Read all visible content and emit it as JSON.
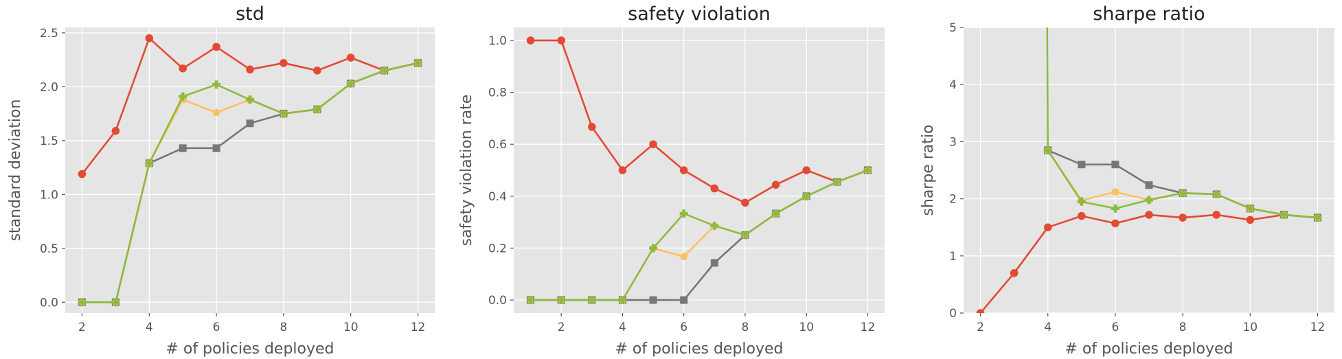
{
  "chart_data": [
    {
      "type": "line",
      "title": "std",
      "xlabel": "# of policies deployed",
      "ylabel": "standard deviation",
      "xlim": [
        1.5,
        12.5
      ],
      "ylim": [
        -0.1,
        2.55
      ],
      "xticks": [
        2,
        4,
        6,
        8,
        10,
        12
      ],
      "yticks": [
        0.0,
        0.5,
        1.0,
        1.5,
        2.0,
        2.5
      ],
      "ytick_labels": [
        "0.0",
        "0.5",
        "1.0",
        "1.5",
        "2.0",
        "2.5"
      ],
      "grid": true,
      "series": [
        {
          "color": "#e24a33",
          "marker": "circle",
          "x": [
            2,
            3,
            4,
            5,
            6,
            7,
            8,
            9,
            10,
            11,
            12
          ],
          "y": [
            1.19,
            1.59,
            2.45,
            2.17,
            2.37,
            2.16,
            2.22,
            2.15,
            2.27,
            2.15,
            2.22
          ]
        },
        {
          "color": "#777777",
          "marker": "square",
          "x": [
            2,
            3,
            4,
            5,
            6,
            7,
            8,
            9,
            10,
            11,
            12
          ],
          "y": [
            0.0,
            0.0,
            1.29,
            1.43,
            1.43,
            1.66,
            1.75,
            1.79,
            2.03,
            2.15,
            2.22
          ]
        },
        {
          "color": "#fbc15e",
          "marker": "pentagon",
          "x": [
            2,
            3,
            4,
            5,
            6,
            7,
            8,
            9,
            10,
            11,
            12
          ],
          "y": [
            0.0,
            0.0,
            1.29,
            1.88,
            1.76,
            1.88,
            1.75,
            1.79,
            2.03,
            2.15,
            2.22
          ]
        },
        {
          "color": "#8eba42",
          "marker": "plus",
          "x": [
            2,
            3,
            4,
            5,
            6,
            7,
            8,
            9,
            10,
            11,
            12
          ],
          "y": [
            0.0,
            0.0,
            1.29,
            1.91,
            2.02,
            1.88,
            1.75,
            1.79,
            2.03,
            2.15,
            2.22
          ]
        }
      ]
    },
    {
      "type": "line",
      "title": "safety violation",
      "xlabel": "# of policies deployed",
      "ylabel": "safety violation rate",
      "xlim": [
        0.45,
        12.55
      ],
      "ylim": [
        -0.05,
        1.05
      ],
      "xticks": [
        2,
        4,
        6,
        8,
        10,
        12
      ],
      "yticks": [
        0.0,
        0.2,
        0.4,
        0.6,
        0.8,
        1.0
      ],
      "ytick_labels": [
        "0.0",
        "0.2",
        "0.4",
        "0.6",
        "0.8",
        "1.0"
      ],
      "grid": true,
      "series": [
        {
          "color": "#e24a33",
          "marker": "circle",
          "x": [
            1,
            2,
            3,
            4,
            5,
            6,
            7,
            8,
            9,
            10,
            11,
            12
          ],
          "y": [
            1.0,
            1.0,
            0.667,
            0.5,
            0.6,
            0.5,
            0.43,
            0.375,
            0.444,
            0.5,
            0.455,
            0.5
          ]
        },
        {
          "color": "#777777",
          "marker": "square",
          "x": [
            1,
            2,
            3,
            4,
            5,
            6,
            7,
            8,
            9,
            10,
            11,
            12
          ],
          "y": [
            0.0,
            0.0,
            0.0,
            0.0,
            0.0,
            0.0,
            0.143,
            0.25,
            0.333,
            0.4,
            0.455,
            0.5
          ]
        },
        {
          "color": "#fbc15e",
          "marker": "pentagon",
          "x": [
            1,
            2,
            3,
            4,
            5,
            6,
            7,
            8,
            9,
            10,
            11,
            12
          ],
          "y": [
            0.0,
            0.0,
            0.0,
            0.0,
            0.2,
            0.167,
            0.286,
            0.25,
            0.333,
            0.4,
            0.455,
            0.5
          ]
        },
        {
          "color": "#8eba42",
          "marker": "plus",
          "x": [
            1,
            2,
            3,
            4,
            5,
            6,
            7,
            8,
            9,
            10,
            11,
            12
          ],
          "y": [
            0.0,
            0.0,
            0.0,
            0.0,
            0.2,
            0.333,
            0.286,
            0.25,
            0.333,
            0.4,
            0.455,
            0.5
          ]
        }
      ]
    },
    {
      "type": "line",
      "title": "sharpe ratio",
      "xlabel": "# of policies deployed",
      "ylabel": "sharpe ratio",
      "xlim": [
        1.5,
        12.5
      ],
      "ylim": [
        0,
        5
      ],
      "xticks": [
        2,
        4,
        6,
        8,
        10,
        12
      ],
      "yticks": [
        0,
        1,
        2,
        3,
        4,
        5
      ],
      "ytick_labels": [
        "0",
        "1",
        "2",
        "3",
        "4",
        "5"
      ],
      "grid": true,
      "series": [
        {
          "color": "#e24a33",
          "marker": "circle",
          "x": [
            2,
            3,
            4,
            5,
            6,
            7,
            8,
            9,
            10,
            11,
            12
          ],
          "y": [
            0.0,
            0.7,
            1.5,
            1.7,
            1.57,
            1.72,
            1.67,
            1.72,
            1.63,
            1.72,
            1.67
          ]
        },
        {
          "color": "#777777",
          "marker": "square",
          "x": [
            4,
            5,
            6,
            7,
            8,
            9,
            10,
            11,
            12
          ],
          "y": [
            2.85,
            2.6,
            2.6,
            2.24,
            2.1,
            2.08,
            1.83,
            1.72,
            1.67
          ]
        },
        {
          "color": "#fbc15e",
          "marker": "pentagon",
          "x": [
            4,
            5,
            6,
            7,
            8,
            9,
            10,
            11,
            12
          ],
          "y": [
            2.85,
            1.97,
            2.12,
            1.98,
            2.1,
            2.08,
            1.83,
            1.72,
            1.67
          ]
        },
        {
          "color": "#8eba42",
          "marker": "plus",
          "x": [
            3.98,
            4,
            5,
            6,
            7,
            8,
            9,
            10,
            11,
            12
          ],
          "y": [
            5.3,
            2.85,
            1.95,
            1.83,
            1.98,
            2.1,
            2.08,
            1.83,
            1.72,
            1.67
          ]
        }
      ]
    }
  ]
}
